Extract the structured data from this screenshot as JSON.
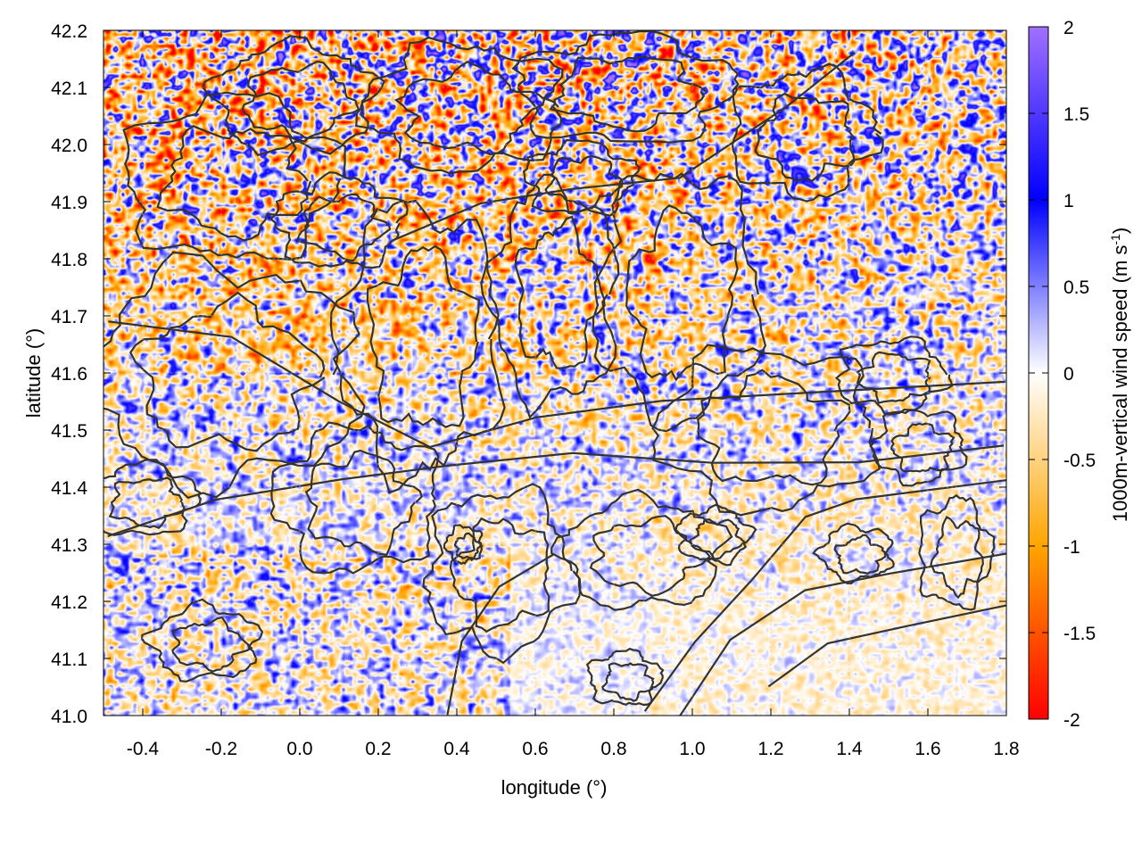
{
  "chart_data": {
    "type": "heatmap",
    "xlabel": "longitude (°)",
    "ylabel": "latitude (°)",
    "xlim": [
      -0.5,
      1.8
    ],
    "ylim": [
      41.0,
      42.2
    ],
    "x_ticks": [
      "-0.4",
      "-0.2",
      "0.0",
      "0.2",
      "0.4",
      "0.6",
      "0.8",
      "1.0",
      "1.2",
      "1.4",
      "1.6",
      "1.8"
    ],
    "x_tick_values": [
      -0.4,
      -0.2,
      0.0,
      0.2,
      0.4,
      0.6,
      0.8,
      1.0,
      1.2,
      1.4,
      1.6,
      1.8
    ],
    "y_ticks": [
      "41.0",
      "41.1",
      "41.2",
      "41.3",
      "41.4",
      "41.5",
      "41.6",
      "41.7",
      "41.8",
      "41.9",
      "42.0",
      "42.1",
      "42.2"
    ],
    "y_tick_values": [
      41.0,
      41.1,
      41.2,
      41.3,
      41.4,
      41.5,
      41.6,
      41.7,
      41.8,
      41.9,
      42.0,
      42.1,
      42.2
    ],
    "colorbar": {
      "label_main": "1000m-vertical wind speed (m s",
      "label_sup": "-1",
      "label_end": ")",
      "range": [
        -2,
        2
      ],
      "ticks": [
        "2",
        "1.5",
        "1",
        "0.5",
        "0",
        "-0.5",
        "-1",
        "-1.5",
        "-2"
      ],
      "tick_values": [
        2,
        1.5,
        1,
        0.5,
        0,
        -0.5,
        -1,
        -1.5,
        -2
      ],
      "colors": [
        {
          "value": -2,
          "color": "#ff0000"
        },
        {
          "value": -1,
          "color": "#ffa500"
        },
        {
          "value": 0,
          "color": "#ffffff"
        },
        {
          "value": 1,
          "color": "#0000ff"
        },
        {
          "value": 2,
          "color": "#a070ff"
        }
      ]
    },
    "contour_color": "#333333",
    "grid": true,
    "field_description": "noisy vertical wind speed field with terrain contour overlay; strongest variability in the north-west, weaker over the south-east"
  }
}
